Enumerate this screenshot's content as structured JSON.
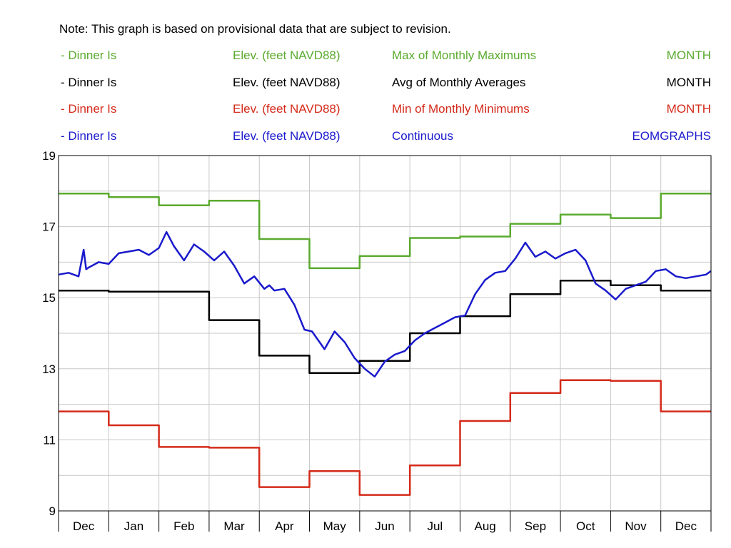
{
  "note": "Note: This graph is based on provisional data that are subject to revision.",
  "legend": [
    {
      "marker": "-",
      "site": "Dinner Is",
      "parameter": "Elev. (feet NAVD88)",
      "statistic": "Max of Monthly Maximums",
      "interval": "MONTH",
      "color": "#5aaa2e"
    },
    {
      "marker": "-",
      "site": "Dinner Is",
      "parameter": "Elev. (feet NAVD88)",
      "statistic": "Avg of Monthly Averages",
      "interval": "MONTH",
      "color": "#000000"
    },
    {
      "marker": "-",
      "site": "Dinner Is",
      "parameter": "Elev. (feet NAVD88)",
      "statistic": "Min of Monthly Minimums",
      "interval": "MONTH",
      "color": "#d42a1a"
    },
    {
      "marker": "-",
      "site": "Dinner Is",
      "parameter": "Elev. (feet NAVD88)",
      "statistic": "Continuous",
      "interval": "EOMGRAPHS",
      "color": "#1a1acc"
    }
  ],
  "chart_data": {
    "type": "line",
    "categories": [
      "Dec",
      "Jan",
      "Feb",
      "Mar",
      "Apr",
      "May",
      "Jun",
      "Jul",
      "Aug",
      "Sep",
      "Oct",
      "Nov",
      "Dec"
    ],
    "yticks": [
      "19",
      "17",
      "15",
      "13",
      "11",
      "9"
    ],
    "ylim": [
      9,
      19
    ],
    "grid": true,
    "series": [
      {
        "name": "Max of Monthly Maximums",
        "step": true,
        "color": "#5aaa2e",
        "values": [
          17.93,
          17.83,
          17.6,
          17.73,
          16.65,
          15.83,
          16.17,
          16.68,
          16.72,
          17.08,
          17.34,
          17.24,
          17.93
        ]
      },
      {
        "name": "Avg of Monthly Averages",
        "step": true,
        "color": "#000000",
        "values": [
          15.2,
          15.17,
          15.17,
          14.37,
          13.37,
          12.88,
          13.22,
          14.0,
          14.48,
          15.1,
          15.48,
          15.35,
          15.2
        ]
      },
      {
        "name": "Min of Monthly Minimums",
        "step": true,
        "color": "#d42a1a",
        "values": [
          11.8,
          11.41,
          10.8,
          10.78,
          9.67,
          10.12,
          9.45,
          10.28,
          11.53,
          12.32,
          12.68,
          12.66,
          11.8
        ]
      },
      {
        "name": "Continuous",
        "step": false,
        "color": "#1a1acc",
        "x": [
          0,
          0.2,
          0.4,
          0.5,
          0.55,
          0.6,
          0.8,
          1.0,
          1.2,
          1.4,
          1.6,
          1.8,
          2.0,
          2.15,
          2.3,
          2.5,
          2.7,
          2.9,
          3.1,
          3.3,
          3.5,
          3.7,
          3.9,
          4.1,
          4.2,
          4.3,
          4.5,
          4.7,
          4.9,
          5.05,
          5.3,
          5.5,
          5.7,
          5.9,
          6.1,
          6.3,
          6.5,
          6.7,
          6.9,
          7.1,
          7.3,
          7.5,
          7.7,
          7.9,
          8.1,
          8.3,
          8.5,
          8.7,
          8.9,
          9.1,
          9.3,
          9.5,
          9.7,
          9.9,
          10.1,
          10.3,
          10.5,
          10.7,
          10.9,
          11.1,
          11.3,
          11.5,
          11.7,
          11.9,
          12.1,
          12.3,
          12.5,
          12.7,
          12.9,
          13.0
        ],
        "y": [
          15.65,
          15.7,
          15.6,
          16.35,
          15.8,
          15.85,
          16.0,
          15.95,
          16.25,
          16.3,
          16.35,
          16.2,
          16.4,
          16.85,
          16.45,
          16.05,
          16.5,
          16.3,
          16.05,
          16.3,
          15.9,
          15.4,
          15.6,
          15.25,
          15.35,
          15.2,
          15.25,
          14.8,
          14.1,
          14.05,
          13.55,
          14.05,
          13.75,
          13.3,
          13.0,
          12.78,
          13.2,
          13.4,
          13.5,
          13.8,
          14.0,
          14.15,
          14.3,
          14.45,
          14.5,
          15.1,
          15.5,
          15.7,
          15.75,
          16.1,
          16.55,
          16.15,
          16.3,
          16.1,
          16.25,
          16.35,
          16.05,
          15.4,
          15.2,
          14.95,
          15.25,
          15.35,
          15.45,
          15.75,
          15.8,
          15.6,
          15.55,
          15.6,
          15.65,
          15.75
        ]
      }
    ]
  }
}
